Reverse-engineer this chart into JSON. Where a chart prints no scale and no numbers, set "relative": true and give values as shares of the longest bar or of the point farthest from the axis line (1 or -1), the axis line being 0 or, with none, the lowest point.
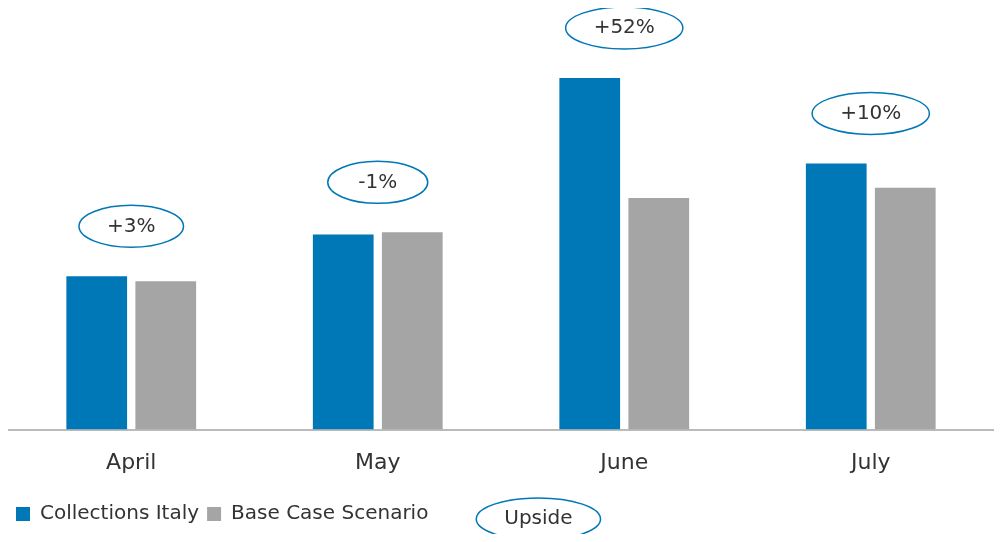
{
  "chart_data": {
    "type": "bar",
    "relative": true,
    "categories": [
      "April",
      "May",
      "June",
      "July"
    ],
    "series": [
      {
        "name": "Collections Italy",
        "color": "#0077b6",
        "values": [
          0.436,
          0.555,
          1,
          0.757
        ]
      },
      {
        "name": "Base Case Scenario",
        "color": "#a5a5a5",
        "values": [
          0.422,
          0.561,
          0.659,
          0.688
        ]
      }
    ],
    "annotations": [
      "+3%",
      "-1%",
      "+52%",
      "+10%",
      "Upside"
    ],
    "grid": false,
    "legend": "bottom"
  }
}
